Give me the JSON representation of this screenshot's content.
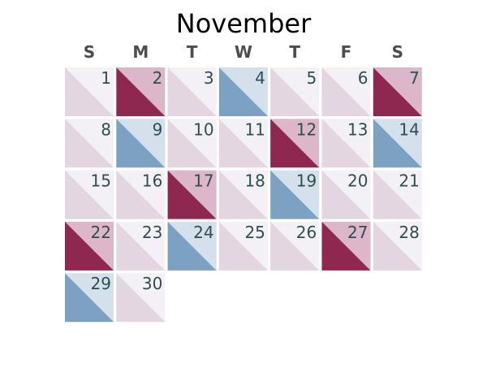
{
  "chart_data": {
    "type": "heatmap",
    "title": "November",
    "weekday_labels": [
      "S",
      "M",
      "T",
      "W",
      "T",
      "F",
      "S"
    ],
    "first_weekday_index": 0,
    "days_in_month": 30,
    "categories": [
      "light",
      "red",
      "blue"
    ],
    "colors": {
      "light": {
        "lower": "#e3d6e1",
        "upper": "#f3f1f5"
      },
      "red": {
        "lower": "#8e2850",
        "upper": "#dcb6c9"
      },
      "blue": {
        "lower": "#7da1c3",
        "upper": "#d4e0eb"
      }
    },
    "days": [
      {
        "day": 1,
        "category": "light"
      },
      {
        "day": 2,
        "category": "red"
      },
      {
        "day": 3,
        "category": "light"
      },
      {
        "day": 4,
        "category": "blue"
      },
      {
        "day": 5,
        "category": "light"
      },
      {
        "day": 6,
        "category": "light"
      },
      {
        "day": 7,
        "category": "red"
      },
      {
        "day": 8,
        "category": "light"
      },
      {
        "day": 9,
        "category": "blue"
      },
      {
        "day": 10,
        "category": "light"
      },
      {
        "day": 11,
        "category": "light"
      },
      {
        "day": 12,
        "category": "red"
      },
      {
        "day": 13,
        "category": "light"
      },
      {
        "day": 14,
        "category": "blue"
      },
      {
        "day": 15,
        "category": "light"
      },
      {
        "day": 16,
        "category": "light"
      },
      {
        "day": 17,
        "category": "red"
      },
      {
        "day": 18,
        "category": "light"
      },
      {
        "day": 19,
        "category": "blue"
      },
      {
        "day": 20,
        "category": "light"
      },
      {
        "day": 21,
        "category": "light"
      },
      {
        "day": 22,
        "category": "red"
      },
      {
        "day": 23,
        "category": "light"
      },
      {
        "day": 24,
        "category": "blue"
      },
      {
        "day": 25,
        "category": "light"
      },
      {
        "day": 26,
        "category": "light"
      },
      {
        "day": 27,
        "category": "red"
      },
      {
        "day": 28,
        "category": "light"
      },
      {
        "day": 29,
        "category": "blue"
      },
      {
        "day": 30,
        "category": "light"
      }
    ]
  }
}
